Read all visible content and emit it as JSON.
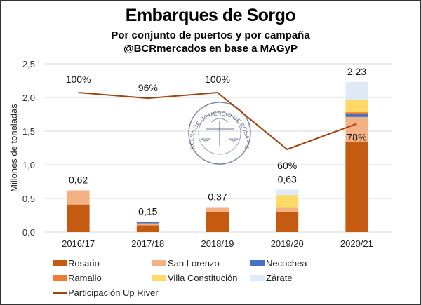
{
  "header": {
    "title": "Embarques de Sorgo",
    "subtitle": "Por conjunto de puertos y por campaña",
    "source": "@BCRmercados en base a MAGyP"
  },
  "watermark": {
    "text": "BOLSA DE COMERCIO DE ROSARIO",
    "icon": "scales-caduceus-seal-icon"
  },
  "chart_data": {
    "type": "bar",
    "stacked": true,
    "title": "Embarques de Sorgo",
    "subtitle": "Por conjunto de puertos y por campaña",
    "xlabel": "",
    "ylabel": "Millones de toneladas",
    "ylim": [
      0,
      2.5
    ],
    "yticks": [
      "0,0",
      "0,5",
      "1,0",
      "1,5",
      "2,0",
      "2,5"
    ],
    "ytick_values": [
      0,
      0.5,
      1.0,
      1.5,
      2.0,
      2.5
    ],
    "grid": true,
    "categories": [
      "2016/17",
      "2017/18",
      "2018/19",
      "2019/20",
      "2020/21"
    ],
    "series": [
      {
        "name": "Rosario",
        "color": "#C55A11",
        "values": [
          0.41,
          0.1,
          0.3,
          0.3,
          1.34
        ]
      },
      {
        "name": "San Lorenzo",
        "color": "#F4B183",
        "values": [
          0.21,
          0.03,
          0.07,
          0.07,
          0.37
        ]
      },
      {
        "name": "Necochea",
        "color": "#4472C4",
        "values": [
          0.0,
          0.02,
          0.0,
          0.0,
          0.04
        ]
      },
      {
        "name": "Ramallo",
        "color": "#ED7D31",
        "values": [
          0.0,
          0.0,
          0.0,
          0.0,
          0.03
        ]
      },
      {
        "name": "Villa Constitución",
        "color": "#FFD966",
        "values": [
          0.0,
          0.0,
          0.0,
          0.18,
          0.18
        ]
      },
      {
        "name": "Zárate",
        "color": "#DEEBF7",
        "values": [
          0.0,
          0.0,
          0.0,
          0.08,
          0.27
        ]
      }
    ],
    "totals": [
      0.62,
      0.15,
      0.37,
      0.63,
      2.23
    ],
    "total_labels": [
      "0,62",
      "0,15",
      "0,37",
      "0,63",
      "2,23"
    ],
    "line_series": {
      "name": "Participación Up River",
      "color": "#A0430E",
      "values_percent": [
        100,
        96,
        100,
        60,
        78
      ],
      "labels": [
        "100%",
        "96%",
        "100%",
        "60%",
        "78%"
      ]
    },
    "legend_position": "bottom"
  }
}
